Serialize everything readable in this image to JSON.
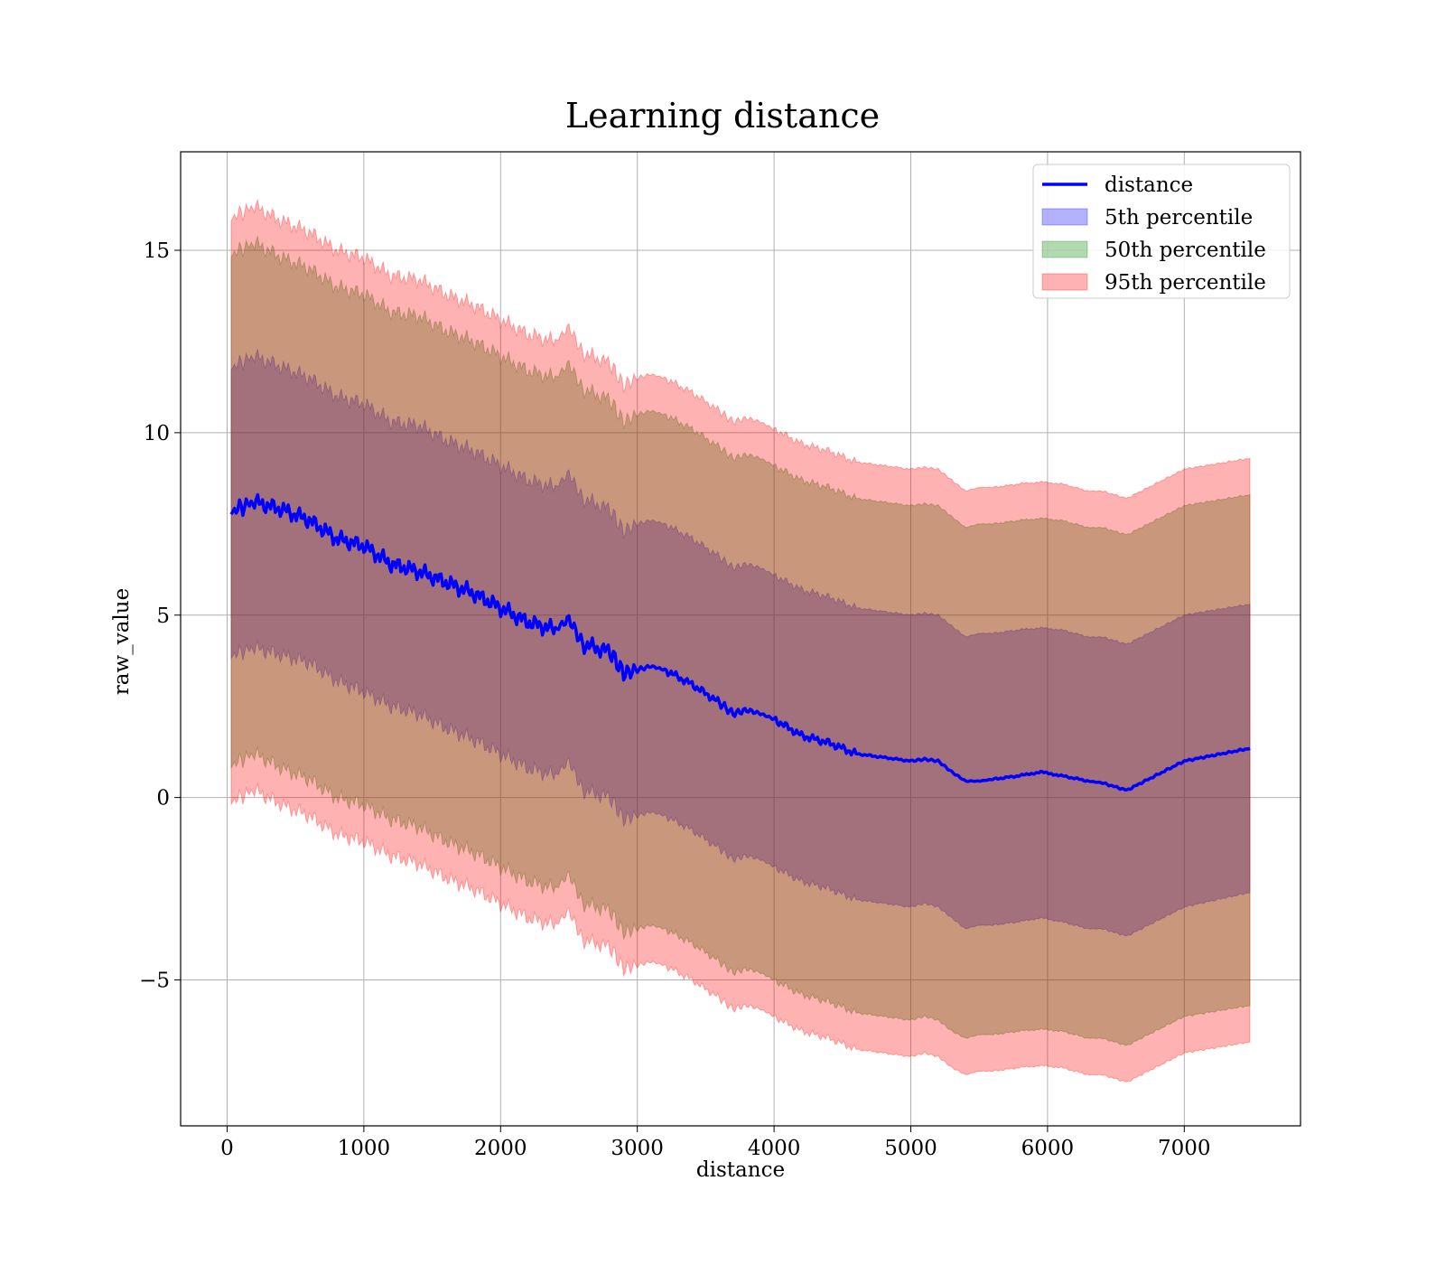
{
  "chart_data": {
    "type": "area",
    "title": "Learning distance",
    "xlabel": "distance",
    "ylabel": "raw_value",
    "xlim": [
      -340,
      7850
    ],
    "ylim": [
      -9,
      17.7
    ],
    "xticks": [
      0,
      1000,
      2000,
      3000,
      4000,
      5000,
      6000,
      7000
    ],
    "yticks": [
      -5,
      0,
      5,
      10,
      15
    ],
    "ytick_labels": [
      "−5",
      "0",
      "5",
      "10",
      "15"
    ],
    "grid": true,
    "legend_position": "top-right",
    "x": [
      30,
      200,
      400,
      600,
      800,
      1000,
      1200,
      1400,
      1600,
      1800,
      2000,
      2200,
      2400,
      2500,
      2600,
      2800,
      2900,
      3000,
      3100,
      3200,
      3400,
      3600,
      3700,
      3800,
      3900,
      4000,
      4200,
      4400,
      4600,
      4800,
      5000,
      5100,
      5200,
      5300,
      5400,
      5500,
      5600,
      5800,
      5950,
      6100,
      6300,
      6400,
      6580,
      7000,
      7480
    ],
    "series": [
      {
        "name": "distance",
        "kind": "line",
        "color": "#0000ff",
        "values": [
          7.85,
          8.1,
          7.9,
          7.6,
          7.1,
          6.9,
          6.4,
          6.2,
          5.9,
          5.6,
          5.2,
          4.8,
          4.6,
          4.9,
          4.2,
          4.0,
          3.4,
          3.5,
          3.6,
          3.5,
          3.1,
          2.6,
          2.3,
          2.4,
          2.3,
          2.15,
          1.7,
          1.5,
          1.2,
          1.1,
          1.0,
          1.05,
          1.0,
          0.7,
          0.45,
          0.45,
          0.5,
          0.6,
          0.7,
          0.6,
          0.45,
          0.4,
          0.2,
          1.0,
          1.35
        ]
      },
      {
        "name": "5th percentile",
        "kind": "band",
        "color": "#0000ff",
        "upper": [
          11.8,
          12.1,
          11.8,
          11.5,
          11.0,
          10.8,
          10.3,
          10.2,
          9.8,
          9.5,
          9.1,
          8.7,
          8.5,
          8.9,
          8.2,
          7.9,
          7.3,
          7.5,
          7.6,
          7.5,
          7.1,
          6.6,
          6.3,
          6.4,
          6.3,
          6.1,
          5.7,
          5.5,
          5.2,
          5.1,
          5.0,
          5.05,
          5.0,
          4.7,
          4.4,
          4.5,
          4.5,
          4.6,
          4.65,
          4.6,
          4.4,
          4.4,
          4.2,
          5.0,
          5.3
        ],
        "lower": [
          3.9,
          4.1,
          3.9,
          3.7,
          3.2,
          2.9,
          2.5,
          2.3,
          1.9,
          1.6,
          1.2,
          0.8,
          0.6,
          1.0,
          0.2,
          0.0,
          -0.6,
          -0.5,
          -0.4,
          -0.5,
          -0.9,
          -1.4,
          -1.7,
          -1.6,
          -1.7,
          -1.9,
          -2.3,
          -2.5,
          -2.8,
          -2.9,
          -3.0,
          -2.9,
          -3.0,
          -3.3,
          -3.6,
          -3.5,
          -3.5,
          -3.4,
          -3.3,
          -3.4,
          -3.6,
          -3.6,
          -3.8,
          -3.0,
          -2.6
        ]
      },
      {
        "name": "50th percentile",
        "kind": "band",
        "color": "#008000",
        "upper": [
          14.9,
          15.2,
          14.8,
          14.5,
          14.0,
          13.8,
          13.3,
          13.2,
          12.8,
          12.5,
          12.1,
          11.7,
          11.5,
          11.9,
          11.2,
          10.9,
          10.3,
          10.5,
          10.6,
          10.5,
          10.1,
          9.6,
          9.3,
          9.4,
          9.3,
          9.1,
          8.7,
          8.5,
          8.2,
          8.1,
          8.0,
          8.05,
          8.0,
          7.7,
          7.4,
          7.5,
          7.5,
          7.6,
          7.65,
          7.6,
          7.4,
          7.4,
          7.2,
          8.0,
          8.3
        ],
        "lower": [
          0.9,
          1.2,
          0.8,
          0.5,
          0.0,
          -0.2,
          -0.6,
          -0.8,
          -1.2,
          -1.5,
          -1.9,
          -2.3,
          -2.5,
          -2.1,
          -2.9,
          -3.1,
          -3.7,
          -3.6,
          -3.5,
          -3.6,
          -4.0,
          -4.5,
          -4.8,
          -4.7,
          -4.8,
          -5.0,
          -5.4,
          -5.6,
          -5.9,
          -6.0,
          -6.1,
          -6.0,
          -6.1,
          -6.4,
          -6.6,
          -6.5,
          -6.5,
          -6.4,
          -6.35,
          -6.4,
          -6.6,
          -6.6,
          -6.8,
          -6.0,
          -5.7
        ]
      },
      {
        "name": "95th percentile",
        "kind": "band",
        "color": "#ff0000",
        "upper": [
          15.9,
          16.2,
          15.8,
          15.5,
          15.0,
          14.8,
          14.3,
          14.2,
          13.8,
          13.5,
          13.1,
          12.7,
          12.5,
          12.9,
          12.2,
          11.9,
          11.3,
          11.5,
          11.6,
          11.5,
          11.1,
          10.6,
          10.3,
          10.4,
          10.3,
          10.1,
          9.7,
          9.5,
          9.2,
          9.1,
          9.0,
          9.05,
          9.0,
          8.7,
          8.4,
          8.5,
          8.5,
          8.6,
          8.65,
          8.6,
          8.4,
          8.4,
          8.2,
          9.0,
          9.3
        ],
        "lower": [
          -0.1,
          0.2,
          -0.2,
          -0.5,
          -1.0,
          -1.2,
          -1.6,
          -1.8,
          -2.2,
          -2.5,
          -2.9,
          -3.3,
          -3.5,
          -3.1,
          -3.9,
          -4.1,
          -4.7,
          -4.6,
          -4.5,
          -4.6,
          -5.0,
          -5.5,
          -5.8,
          -5.7,
          -5.8,
          -6.0,
          -6.4,
          -6.6,
          -6.9,
          -7.0,
          -7.1,
          -7.0,
          -7.1,
          -7.4,
          -7.6,
          -7.5,
          -7.5,
          -7.4,
          -7.35,
          -7.4,
          -7.6,
          -7.6,
          -7.8,
          -7.0,
          -6.7
        ]
      }
    ]
  }
}
